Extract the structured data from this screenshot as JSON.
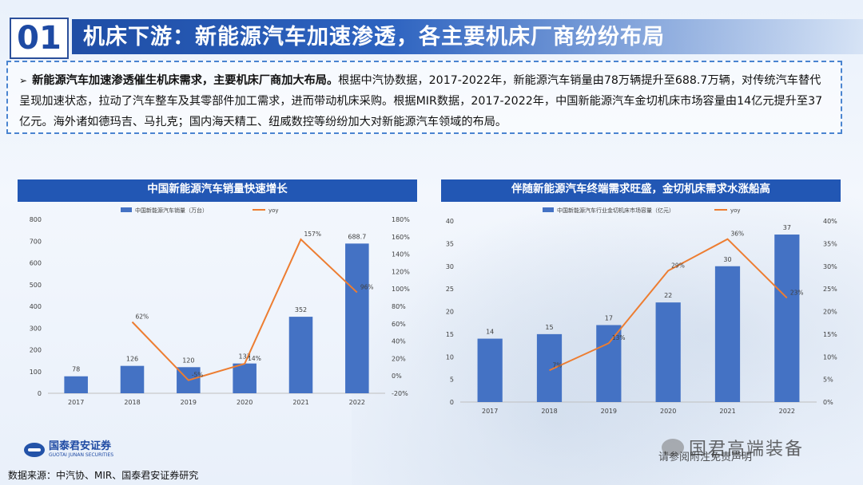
{
  "header": {
    "section_number": "01",
    "title": "机床下游：新能源汽车加速渗透，各主要机床厂商纷纷布局"
  },
  "summary": {
    "arrow": "➢",
    "bold_lead": "新能源汽车加速渗透催生机床需求，主要机床厂商加大布局。",
    "text": "根据中汽协数据，2017-2022年，新能源汽车销量由78万辆提升至688.7万辆，对传统汽车替代呈现加速状态，拉动了汽车整车及其零部件加工需求，进而带动机床采购。根据MIR数据，2017-2022年，中国新能源汽车金切机床市场容量由14亿元提升至37亿元。海外诸如德玛吉、马扎克；国内海天精工、纽威数控等纷纷加大对新能源汽车领域的布局。"
  },
  "charts": {
    "left_title": "中国新能源汽车销量快速增长",
    "right_title": "伴随新能源汽车终端需求旺盛，金切机床需求水涨船高"
  },
  "chart_data": [
    {
      "type": "bar",
      "title": "中国新能源汽车销量快速增长",
      "categories": [
        "2017",
        "2018",
        "2019",
        "2020",
        "2021",
        "2022"
      ],
      "series": [
        {
          "name": "中国新能源汽车销量（万台）",
          "type": "bar",
          "axis": "left",
          "values": [
            78,
            126,
            120,
            137,
            352,
            688.7
          ],
          "labels": [
            "78",
            "126",
            "120",
            "137",
            "352",
            "688.7"
          ]
        },
        {
          "name": "yoy",
          "type": "line",
          "axis": "right",
          "values": [
            null,
            62,
            -5,
            14,
            157,
            96
          ],
          "labels": [
            "",
            "62%",
            "-5%",
            "14%",
            "157%",
            "96%"
          ]
        }
      ],
      "y_left": {
        "min": 0,
        "max": 800,
        "ticks": [
          "0",
          "100",
          "200",
          "300",
          "400",
          "500",
          "600",
          "700",
          "800"
        ]
      },
      "y_right": {
        "min": -20,
        "max": 180,
        "ticks": [
          "-20%",
          "0%",
          "20%",
          "40%",
          "60%",
          "80%",
          "100%",
          "120%",
          "140%",
          "160%",
          "180%"
        ]
      },
      "colors": {
        "bar": "#4472c4",
        "line": "#ed7d31"
      }
    },
    {
      "type": "bar",
      "title": "伴随新能源汽车终端需求旺盛，金切机床需求水涨船高",
      "categories": [
        "2017",
        "2018",
        "2019",
        "2020",
        "2021",
        "2022"
      ],
      "series": [
        {
          "name": "中国新能源汽车行业金切机床市场容量（亿元）",
          "type": "bar",
          "axis": "left",
          "values": [
            14,
            15,
            17,
            22,
            30,
            37
          ],
          "labels": [
            "14",
            "15",
            "17",
            "22",
            "30",
            "37"
          ]
        },
        {
          "name": "yoy",
          "type": "line",
          "axis": "right",
          "values": [
            null,
            7,
            13,
            29,
            36,
            23
          ],
          "labels": [
            "",
            "7%",
            "13%",
            "29%",
            "36%",
            "23%"
          ]
        }
      ],
      "y_left": {
        "min": 0,
        "max": 40,
        "ticks": [
          "0",
          "5",
          "10",
          "15",
          "20",
          "25",
          "30",
          "35",
          "40"
        ]
      },
      "y_right": {
        "min": 0,
        "max": 40,
        "ticks": [
          "0%",
          "5%",
          "10%",
          "15%",
          "20%",
          "25%",
          "30%",
          "35%",
          "40%"
        ]
      },
      "colors": {
        "bar": "#4472c4",
        "line": "#ed7d31"
      }
    }
  ],
  "footer": {
    "logo_cn": "国泰君安证券",
    "logo_en": "GUOTAI JUNAN SECURITIES",
    "source": "数据来源：中汽协、MIR、国泰君安证券研究",
    "watermark": "国君高端装备",
    "watermark_sub": "请参阅附注免责声明"
  }
}
